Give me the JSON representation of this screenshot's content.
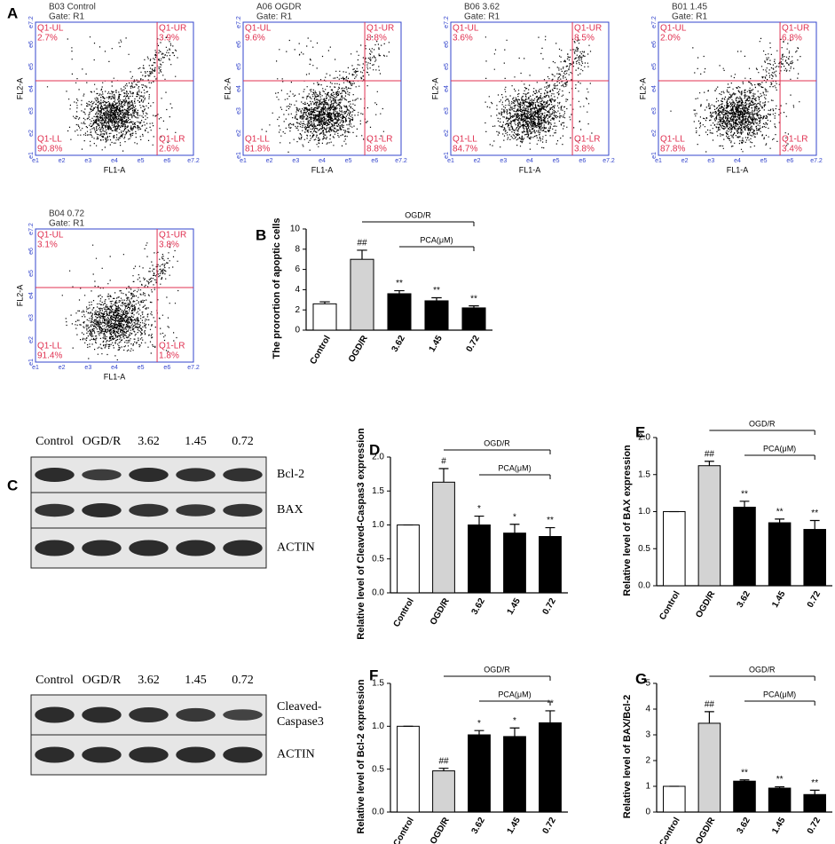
{
  "panel_labels": [
    "A",
    "B",
    "C",
    "D",
    "E",
    "F",
    "G"
  ],
  "flow": {
    "x_axis": "FL1-A",
    "y_axis": "FL2-A",
    "ticks": [
      "e1",
      "e2",
      "e3",
      "e4",
      "e5",
      "e6",
      "e7.2"
    ],
    "quadrants": [
      "Q1-UL",
      "Q1-UR",
      "Q1-LL",
      "Q1-LR"
    ],
    "panels": [
      {
        "title": "B03 Control",
        "gate": "Gate: R1",
        "percents": [
          "2.7%",
          "3.9%",
          "90.8%",
          "2.6%"
        ]
      },
      {
        "title": "A06 OGDR",
        "gate": "Gate: R1",
        "percents": [
          "9.6%",
          "8.8%",
          "81.8%",
          "8.8%"
        ]
      },
      {
        "title": "B06 3.62",
        "gate": "Gate: R1",
        "percents": [
          "3.6%",
          "8.5%",
          "84.7%",
          "3.8%"
        ]
      },
      {
        "title": "B01 1.45",
        "gate": "Gate: R1",
        "percents": [
          "2.0%",
          "6.8%",
          "87.8%",
          "3.4%"
        ]
      },
      {
        "title": "B04 0.72",
        "gate": "Gate: R1",
        "percents": [
          "3.1%",
          "3.8%",
          "91.4%",
          "1.8%"
        ]
      }
    ]
  },
  "blots": [
    {
      "lanes": [
        "Control",
        "OGD/R",
        "3.62",
        "1.45",
        "0.72"
      ],
      "rows": [
        [
          "Bcl-2"
        ],
        [
          "BAX"
        ],
        [
          "ACTIN"
        ]
      ]
    },
    {
      "lanes": [
        "Control",
        "OGD/R",
        "3.62",
        "1.45",
        "0.72"
      ],
      "rows": [
        [
          "Cleaved-",
          "Caspase3"
        ],
        [
          "ACTIN"
        ]
      ]
    }
  ],
  "chart_data": [
    {
      "type": "bar",
      "title": "The prorortion of apoptic cells",
      "categories": [
        "Control",
        "OGD/R",
        "3.62",
        "1.45",
        "0.72"
      ],
      "values": [
        2.6,
        7.0,
        3.6,
        2.9,
        2.2
      ],
      "errors": [
        0.2,
        0.9,
        0.3,
        0.3,
        0.2
      ],
      "colors": [
        "#ffffff",
        "#d3d3d3",
        "#000000",
        "#000000",
        "#000000"
      ],
      "significance": [
        null,
        "##",
        "**",
        "**",
        "**"
      ],
      "brackets": [
        "OGD/R",
        "PCA(μM)"
      ],
      "ylim": [
        0,
        10
      ],
      "yticks": [
        0,
        2,
        4,
        6,
        8,
        10
      ]
    },
    {
      "type": "bar",
      "title": "Relative level of Cleaved-Caspas3 expression",
      "categories": [
        "Control",
        "OGD/R",
        "3.62",
        "1.45",
        "0.72"
      ],
      "values": [
        1.0,
        1.63,
        1.0,
        0.88,
        0.83
      ],
      "errors": [
        0,
        0.2,
        0.13,
        0.13,
        0.13
      ],
      "colors": [
        "#ffffff",
        "#d3d3d3",
        "#000000",
        "#000000",
        "#000000"
      ],
      "significance": [
        null,
        "#",
        "*",
        "*",
        "**"
      ],
      "brackets": [
        "OGD/R",
        "PCA(μM)"
      ],
      "ylim": [
        0,
        2
      ],
      "yticks": [
        {
          "value": 0,
          "label": "0.0"
        },
        0.5,
        {
          "value": 1,
          "label": "1.0"
        },
        1.5,
        {
          "value": 2,
          "label": "2.0"
        }
      ]
    },
    {
      "type": "bar",
      "title": "Relative level of BAX expression",
      "categories": [
        "Control",
        "OGD/R",
        "3.62",
        "1.45",
        "0.72"
      ],
      "values": [
        1.0,
        1.62,
        1.06,
        0.85,
        0.76
      ],
      "errors": [
        0,
        0.06,
        0.08,
        0.05,
        0.12
      ],
      "colors": [
        "#ffffff",
        "#d3d3d3",
        "#000000",
        "#000000",
        "#000000"
      ],
      "significance": [
        null,
        "##",
        "**",
        "**",
        "**"
      ],
      "brackets": [
        "OGD/R",
        "PCA(μM)"
      ],
      "ylim": [
        0,
        2
      ],
      "yticks": [
        {
          "value": 0,
          "label": "0.0"
        },
        0.5,
        {
          "value": 1,
          "label": "1.0"
        },
        1.5,
        {
          "value": 2,
          "label": "2.0"
        }
      ]
    },
    {
      "type": "bar",
      "title": "Relative level of Bcl-2 expression",
      "categories": [
        "Control",
        "OGD/R",
        "3.62",
        "1.45",
        "0.72"
      ],
      "values": [
        1.0,
        0.48,
        0.9,
        0.88,
        1.04
      ],
      "errors": [
        0,
        0.03,
        0.05,
        0.1,
        0.14
      ],
      "colors": [
        "#ffffff",
        "#d3d3d3",
        "#000000",
        "#000000",
        "#000000"
      ],
      "significance": [
        null,
        "##",
        "*",
        "*",
        "**"
      ],
      "brackets": [
        "OGD/R",
        "PCA(μM)"
      ],
      "ylim": [
        0,
        1.5
      ],
      "yticks": [
        {
          "value": 0,
          "label": "0.0"
        },
        0.5,
        {
          "value": 1,
          "label": "1.0"
        },
        1.5
      ]
    },
    {
      "type": "bar",
      "title": "Relative level of BAX/Bcl-2",
      "categories": [
        "Control",
        "OGD/R",
        "3.62",
        "1.45",
        "0.72"
      ],
      "values": [
        1.0,
        3.45,
        1.2,
        0.93,
        0.68
      ],
      "errors": [
        0,
        0.45,
        0.05,
        0.05,
        0.17
      ],
      "colors": [
        "#ffffff",
        "#d3d3d3",
        "#000000",
        "#000000",
        "#000000"
      ],
      "significance": [
        null,
        "##",
        "**",
        "**",
        "**"
      ],
      "brackets": [
        "OGD/R",
        "PCA(μM)"
      ],
      "ylim": [
        0,
        5
      ],
      "yticks": [
        0,
        1,
        2,
        3,
        4,
        5
      ]
    }
  ]
}
